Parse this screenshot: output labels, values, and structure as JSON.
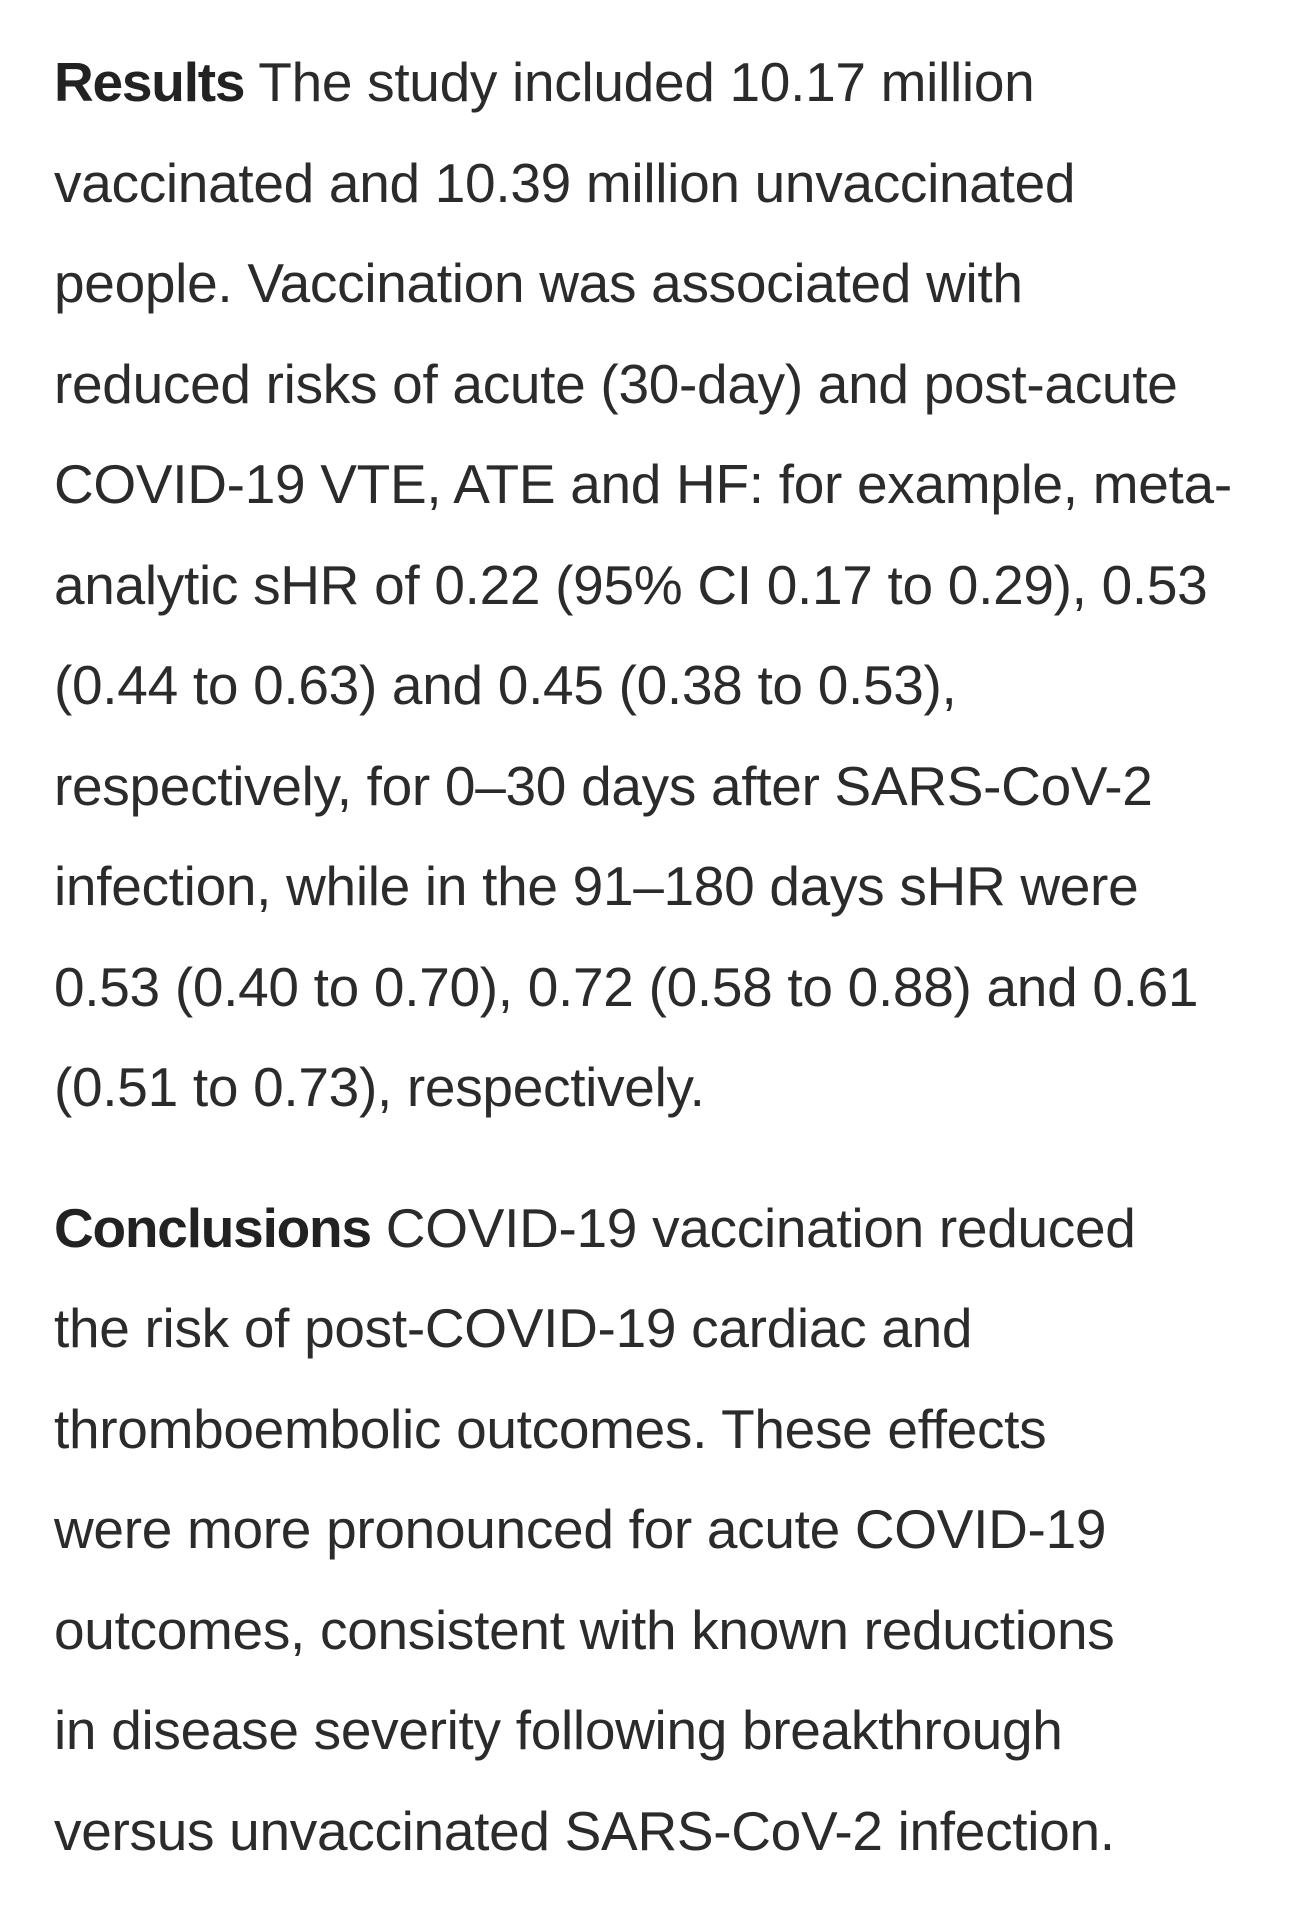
{
  "results": {
    "label": "Results",
    "lines": [
      " The study included 10.17 million",
      "vaccinated and 10.39 million unvaccinated",
      "people. Vaccination was associated with",
      "reduced risks of acute (30-day) and post-acute",
      "COVID-19 VTE, ATE and HF: for example, meta-",
      "analytic sHR of 0.22 (95% CI 0.17 to 0.29), 0.53",
      "(0.44 to 0.63) and 0.45 (0.38 to 0.53),",
      "respectively, for 0–30 days after SARS-CoV-2",
      "infection, while in the 91–180 days sHR were",
      "0.53 (0.40 to 0.70), 0.72 (0.58 to 0.88) and 0.61",
      "(0.51 to 0.73), respectively."
    ]
  },
  "conclusions": {
    "label": "Conclusions",
    "lines": [
      " COVID-19 vaccination reduced",
      "the risk of post-COVID-19 cardiac and",
      "thromboembolic outcomes. These effects",
      "were more pronounced for acute COVID-19",
      "outcomes, consistent with known reductions",
      "in disease severity following breakthrough",
      "versus unvaccinated SARS-CoV-2 infection."
    ]
  }
}
